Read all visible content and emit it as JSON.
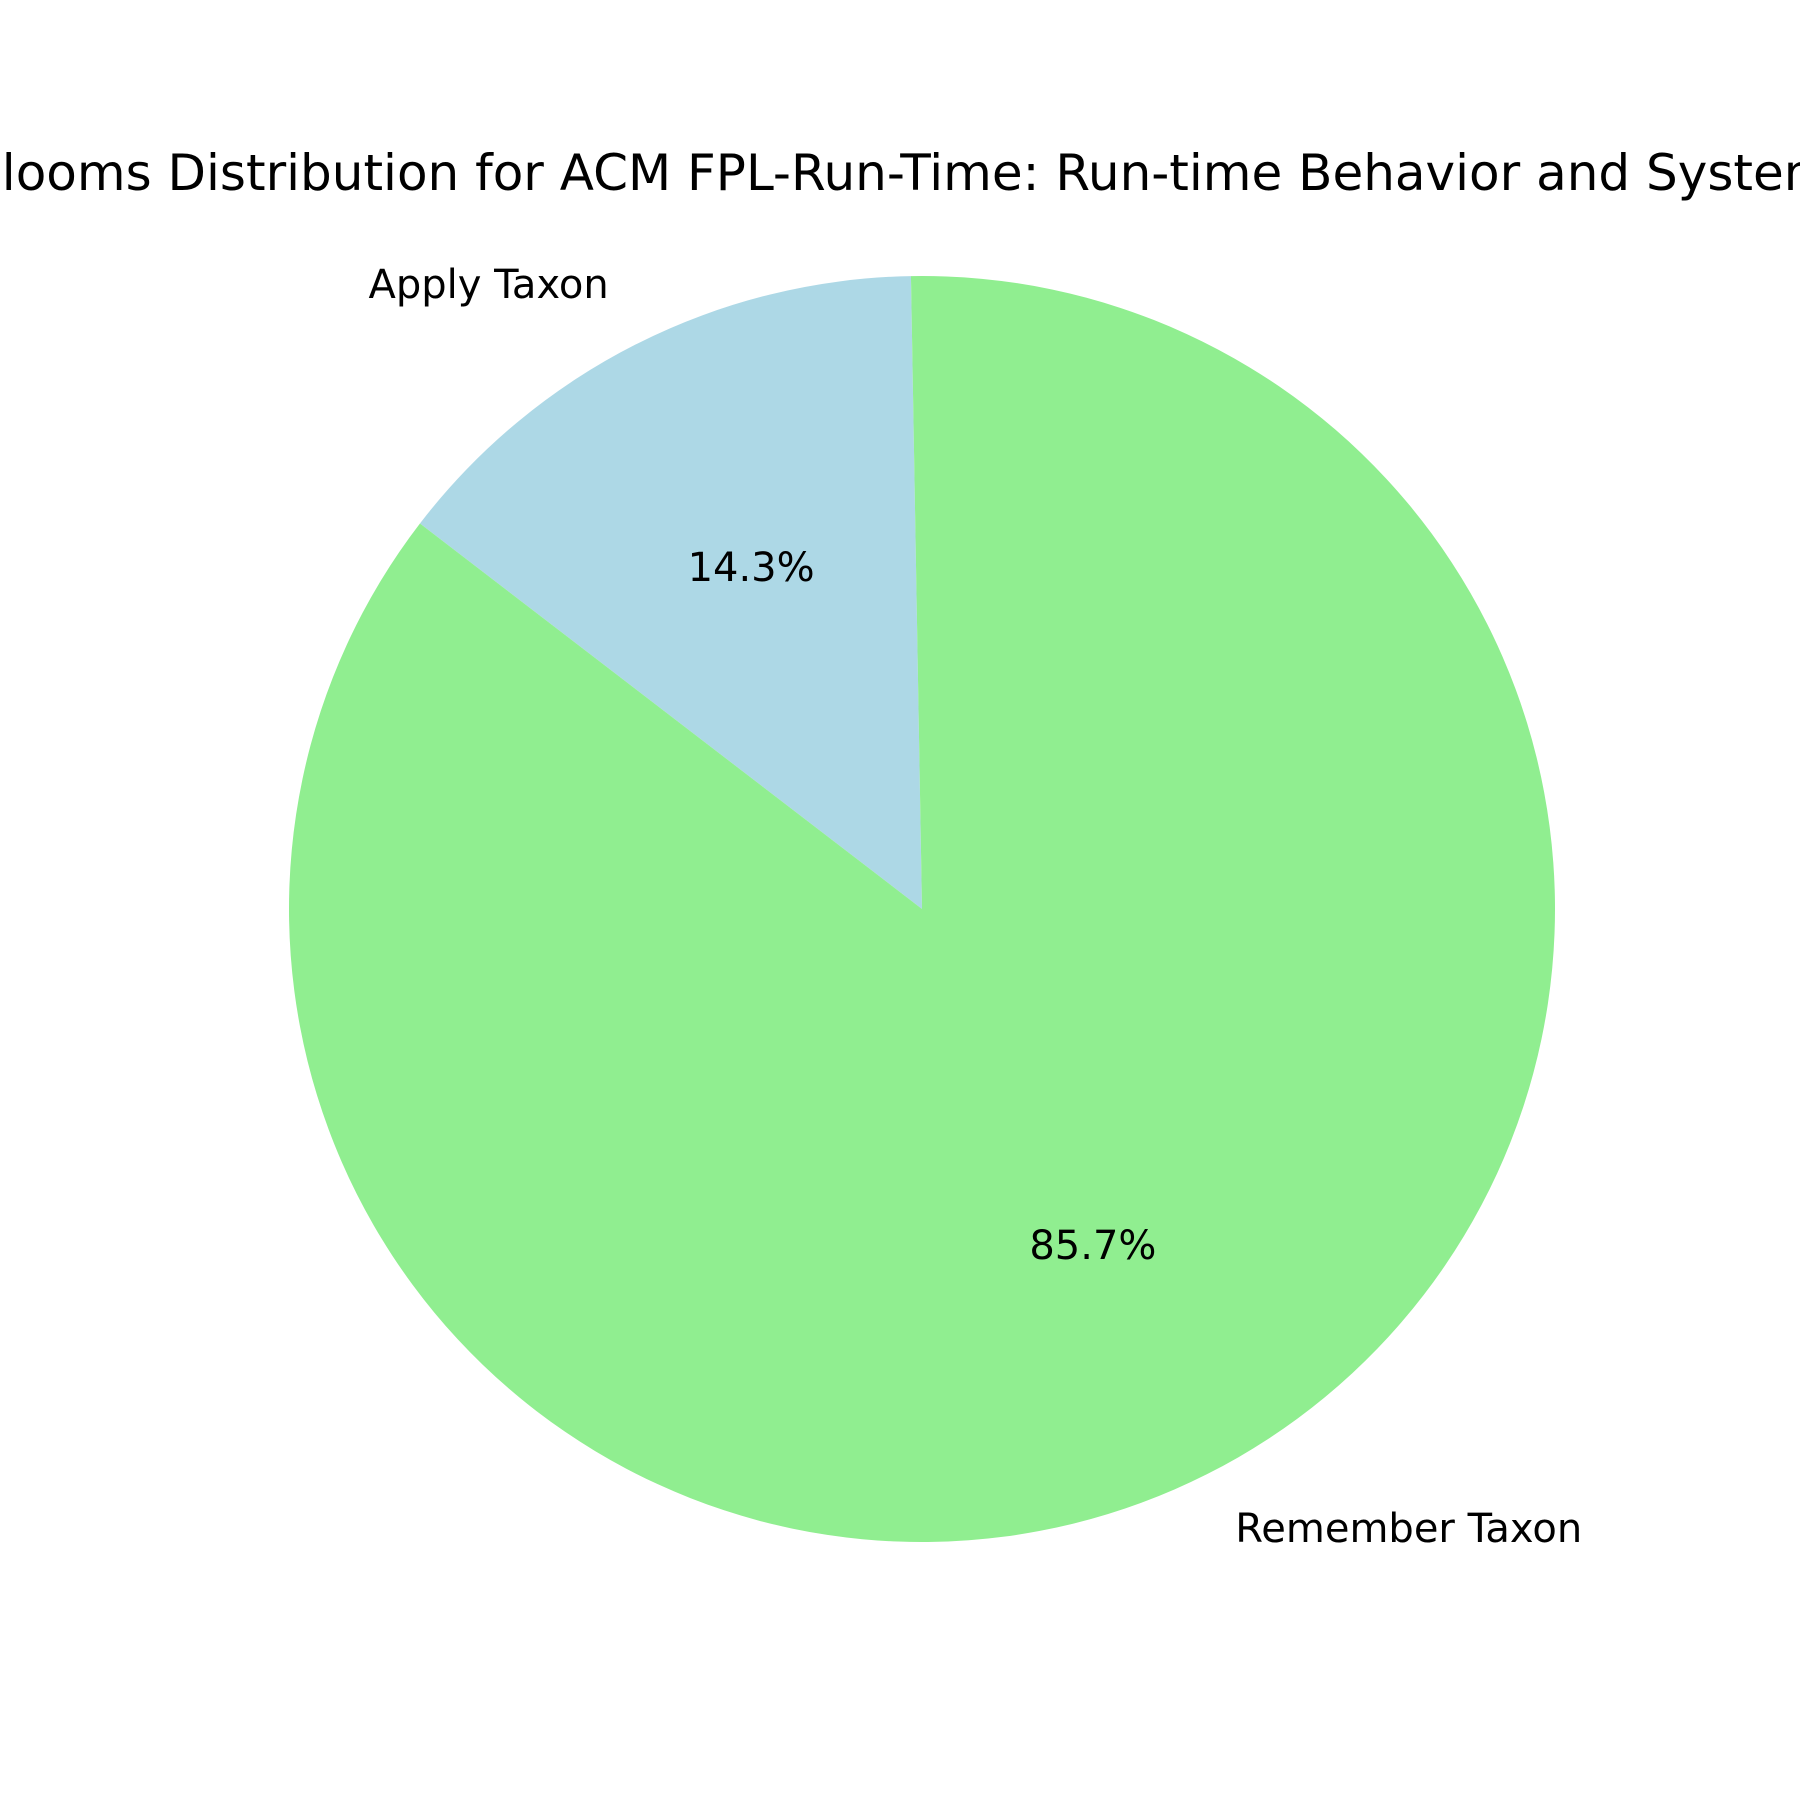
{
  "chart_data": {
    "type": "pie",
    "title": "Blooms Distribution for ACM FPL-Run-Time: Run-time Behavior and System",
    "categories": [
      "Apply Taxon",
      "Remember Taxon"
    ],
    "values": [
      14.3,
      85.7
    ],
    "value_labels": [
      "14.3%",
      "85.7%"
    ],
    "colors": [
      "#add8e6",
      "#90ee90"
    ],
    "start_angle_deg": 91,
    "direction": "counterclockwise",
    "legend": "none"
  }
}
